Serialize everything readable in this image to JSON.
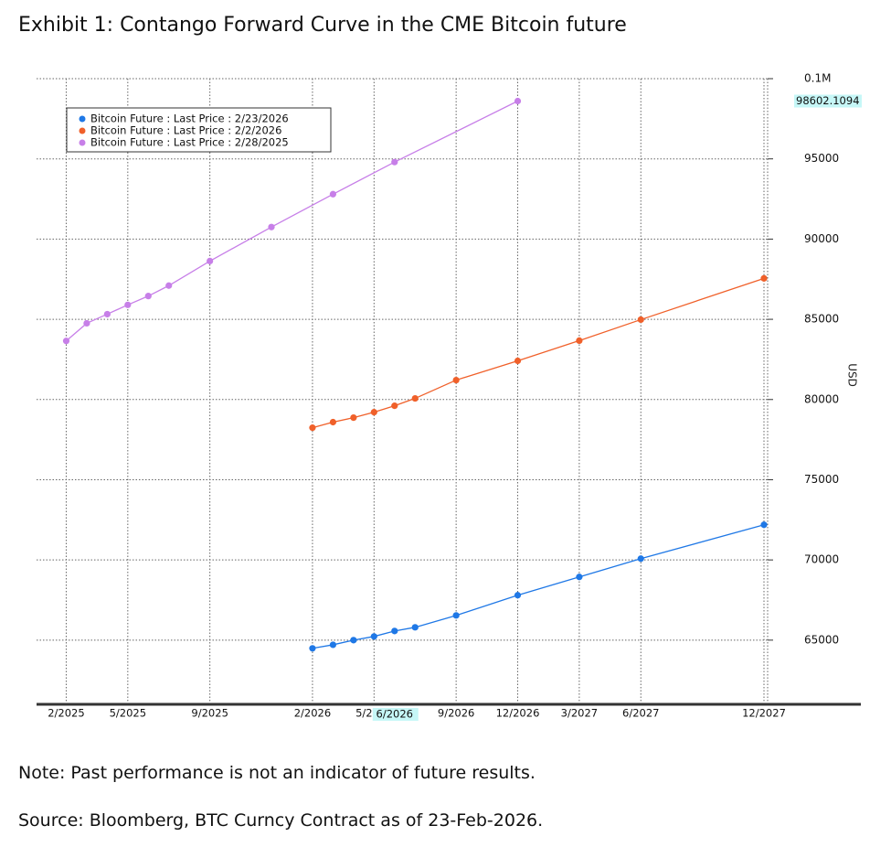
{
  "chart_data": {
    "type": "line",
    "title": "Exhibit 1: Contango Forward Curve in the CME Bitcoin future",
    "y_label": "USD",
    "xlim": [
      "1/2025",
      "12/2027"
    ],
    "xticks": [
      "2/2025",
      "5/2025",
      "9/2025",
      "2/2026",
      "5/2026",
      "9/2026",
      "12/2026",
      "3/2027",
      "6/2027",
      "12/2027"
    ],
    "cursor_label": "6/2026",
    "ylim": [
      61000,
      100000
    ],
    "yticks": [
      65000,
      70000,
      75000,
      80000,
      85000,
      90000,
      95000,
      {
        "value": 100000,
        "label": "0.1M"
      }
    ],
    "grid": true,
    "legend_position": "upper-left",
    "series": [
      {
        "name": "Bitcoin Future : Last Price : 2/23/2026",
        "color": "#1f78e6",
        "x": [
          "2/2026",
          "3/2026",
          "4/2026",
          "5/2026",
          "6/2026",
          "7/2026",
          "9/2026",
          "12/2026",
          "3/2027",
          "6/2027",
          "12/2027"
        ],
        "values": [
          64490,
          64710,
          65000,
          65230,
          65570,
          65800,
          66540,
          67800,
          68940,
          70080,
          72190
        ]
      },
      {
        "name": "Bitcoin Future : Last Price : 2/2/2026",
        "color": "#f0602a",
        "x": [
          "2/2026",
          "3/2026",
          "4/2026",
          "5/2026",
          "6/2026",
          "7/2026",
          "9/2026",
          "12/2026",
          "3/2027",
          "6/2027",
          "12/2027"
        ],
        "values": [
          78240,
          78590,
          78870,
          79210,
          79610,
          80070,
          81210,
          82410,
          83670,
          84980,
          87550
        ]
      },
      {
        "name": "Bitcoin Future : Last Price : 2/28/2025",
        "color": "#c77fe8",
        "x": [
          "2/2025",
          "3/2025",
          "4/2025",
          "5/2025",
          "6/2025",
          "7/2025",
          "9/2025",
          "12/2025",
          "3/2026",
          "6/2026",
          "12/2026"
        ],
        "values": [
          83650,
          84750,
          85320,
          85900,
          86450,
          87100,
          88630,
          90750,
          92800,
          94800,
          98602.1094
        ]
      }
    ]
  },
  "notes": [
    "Note: Past performance is not an indicator of future results.",
    "Source: Bloomberg, BTC Curncy Contract as of 23-Feb-2026."
  ]
}
